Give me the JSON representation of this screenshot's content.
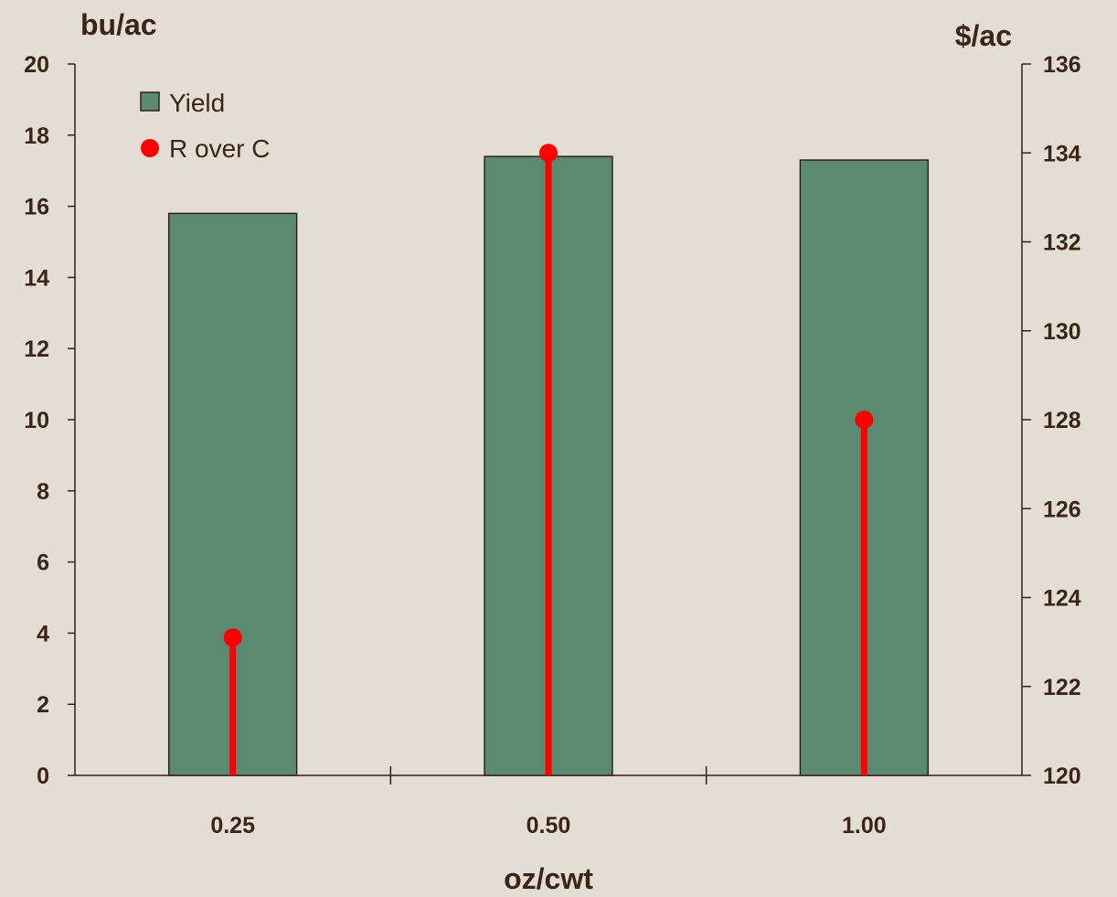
{
  "chart_data": {
    "type": "bar",
    "categories": [
      "0.25",
      "0.50",
      "1.00"
    ],
    "series": [
      {
        "name": "Yield",
        "type": "bar",
        "axis": "left",
        "values": [
          15.8,
          17.4,
          17.3
        ]
      },
      {
        "name": "R over C",
        "type": "lollipop",
        "axis": "right",
        "values": [
          123.1,
          134.0,
          128.0
        ]
      }
    ],
    "xlabel": "oz/cwt",
    "ylabel_left": "bu/ac",
    "ylabel_right": "$/ac",
    "ylim_left": [
      0,
      20
    ],
    "ylim_right": [
      120,
      136
    ],
    "yticks_left": [
      "0",
      "2",
      "4",
      "6",
      "8",
      "10",
      "12",
      "14",
      "16",
      "18",
      "20"
    ],
    "yticks_right": [
      "120",
      "122",
      "124",
      "126",
      "128",
      "130",
      "132",
      "134",
      "136"
    ],
    "legend_position": "top-left",
    "grid": false,
    "colors": {
      "background": "#e3ddd3",
      "bar_fill": "#5b8a70",
      "bar_stroke": "#2f2218",
      "point": "#ff0000",
      "axis": "#2f2218",
      "text": "#3a2518"
    }
  }
}
